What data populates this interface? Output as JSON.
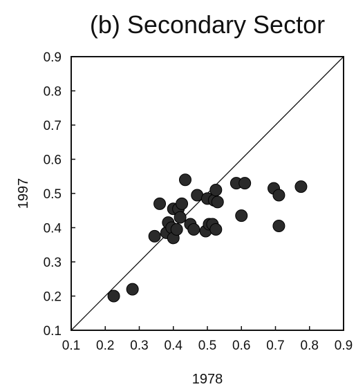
{
  "chart_data": {
    "type": "scatter",
    "title": "(b) Secondary Sector",
    "xlabel": "1978",
    "ylabel": "1997",
    "xlim": [
      0.1,
      0.9
    ],
    "ylim": [
      0.1,
      0.9
    ],
    "xticks": [
      "0.1",
      "0.2",
      "0.3",
      "0.4",
      "0.5",
      "0.6",
      "0.7",
      "0.8",
      "0.9"
    ],
    "yticks": [
      "0.1",
      "0.2",
      "0.3",
      "0.4",
      "0.5",
      "0.6",
      "0.7",
      "0.8",
      "0.9"
    ],
    "grid": false,
    "reference_line": {
      "from": [
        0.1,
        0.1
      ],
      "to": [
        0.9,
        0.9
      ]
    },
    "points": [
      {
        "x": 0.225,
        "y": 0.2
      },
      {
        "x": 0.28,
        "y": 0.22
      },
      {
        "x": 0.345,
        "y": 0.375
      },
      {
        "x": 0.36,
        "y": 0.47
      },
      {
        "x": 0.38,
        "y": 0.385
      },
      {
        "x": 0.385,
        "y": 0.415
      },
      {
        "x": 0.395,
        "y": 0.4
      },
      {
        "x": 0.4,
        "y": 0.455
      },
      {
        "x": 0.4,
        "y": 0.37
      },
      {
        "x": 0.41,
        "y": 0.395
      },
      {
        "x": 0.415,
        "y": 0.455
      },
      {
        "x": 0.42,
        "y": 0.43
      },
      {
        "x": 0.425,
        "y": 0.47
      },
      {
        "x": 0.435,
        "y": 0.54
      },
      {
        "x": 0.45,
        "y": 0.41
      },
      {
        "x": 0.46,
        "y": 0.395
      },
      {
        "x": 0.47,
        "y": 0.495
      },
      {
        "x": 0.495,
        "y": 0.39
      },
      {
        "x": 0.5,
        "y": 0.485
      },
      {
        "x": 0.505,
        "y": 0.41
      },
      {
        "x": 0.515,
        "y": 0.41
      },
      {
        "x": 0.52,
        "y": 0.48
      },
      {
        "x": 0.525,
        "y": 0.395
      },
      {
        "x": 0.525,
        "y": 0.51
      },
      {
        "x": 0.53,
        "y": 0.475
      },
      {
        "x": 0.585,
        "y": 0.53
      },
      {
        "x": 0.6,
        "y": 0.435
      },
      {
        "x": 0.61,
        "y": 0.53
      },
      {
        "x": 0.695,
        "y": 0.515
      },
      {
        "x": 0.71,
        "y": 0.495
      },
      {
        "x": 0.71,
        "y": 0.405
      },
      {
        "x": 0.775,
        "y": 0.52
      }
    ],
    "marker_color": "#2a2a2a",
    "line_color": "#111111"
  }
}
